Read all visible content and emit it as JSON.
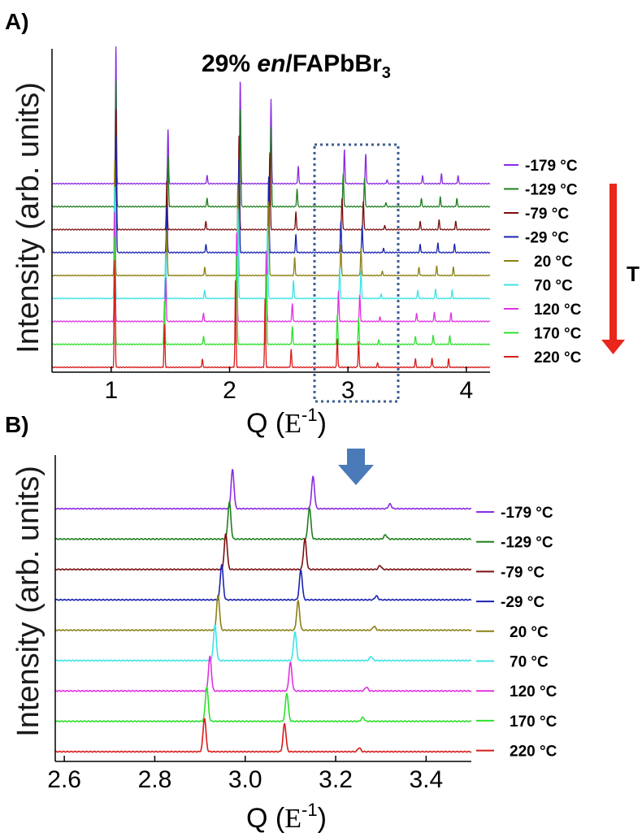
{
  "panels": {
    "a": {
      "letter": "A)"
    },
    "b": {
      "letter": "B)"
    }
  },
  "title": {
    "prefix": "29% ",
    "italic": "en",
    "middle": "/FAPbBr",
    "subscript": "3"
  },
  "temperature_arrow_label": "T",
  "colors": {
    "-179": "#8b2be2",
    "-129": "#1f7f1f",
    "-79": "#7a0f0f",
    "-29": "#1a23b0",
    "20": "#8c8014",
    "70": "#3fe3e6",
    "120": "#e032e0",
    "170": "#2ee02e",
    "220": "#d81b1b",
    "arrow_red": "#e8261c",
    "arrow_blue": "#4a7ab8",
    "dotted_box": "#3f5f8f"
  },
  "chart_data": [
    {
      "type": "line",
      "panel": "A)",
      "title": "29% en/FAPbBr3",
      "xlabel": "Q (E-1)",
      "ylabel": "Intensity (arb. units)",
      "xlim": [
        0.5,
        4.2
      ],
      "xticks": [
        1,
        2,
        3,
        4
      ],
      "legend_position": "right",
      "zoom_region_x": [
        2.72,
        3.42
      ],
      "series_temperatures": [
        -179,
        -129,
        -79,
        -29,
        20,
        70,
        120,
        170,
        220
      ],
      "series": [
        {
          "name": "-179 °C",
          "peaks": [
            [
              1.04,
              1.0
            ],
            [
              1.48,
              0.4
            ],
            [
              1.81,
              0.06
            ],
            [
              2.09,
              0.75
            ],
            [
              2.35,
              0.62
            ],
            [
              2.58,
              0.13
            ],
            [
              2.97,
              0.25
            ],
            [
              3.15,
              0.22
            ],
            [
              3.33,
              0.03
            ],
            [
              3.63,
              0.06
            ],
            [
              3.79,
              0.07
            ],
            [
              3.93,
              0.06
            ]
          ]
        },
        {
          "name": "-129 °C",
          "peaks": [
            [
              1.04,
              0.93
            ],
            [
              1.48,
              0.37
            ],
            [
              1.81,
              0.06
            ],
            [
              2.09,
              0.72
            ],
            [
              2.35,
              0.58
            ],
            [
              2.57,
              0.13
            ],
            [
              2.96,
              0.24
            ],
            [
              3.14,
              0.21
            ],
            [
              3.32,
              0.03
            ],
            [
              3.62,
              0.06
            ],
            [
              3.78,
              0.07
            ],
            [
              3.92,
              0.06
            ]
          ]
        },
        {
          "name": "-79 °C",
          "peaks": [
            [
              1.04,
              0.88
            ],
            [
              1.47,
              0.35
            ],
            [
              1.8,
              0.06
            ],
            [
              2.08,
              0.7
            ],
            [
              2.34,
              0.56
            ],
            [
              2.56,
              0.13
            ],
            [
              2.95,
              0.23
            ],
            [
              3.13,
              0.21
            ],
            [
              3.31,
              0.03
            ],
            [
              3.61,
              0.06
            ],
            [
              3.77,
              0.07
            ],
            [
              3.91,
              0.06
            ]
          ]
        },
        {
          "name": "-29 °C",
          "peaks": [
            [
              1.04,
              0.86
            ],
            [
              1.47,
              0.34
            ],
            [
              1.8,
              0.06
            ],
            [
              2.08,
              0.69
            ],
            [
              2.33,
              0.55
            ],
            [
              2.56,
              0.13
            ],
            [
              2.94,
              0.23
            ],
            [
              3.12,
              0.2
            ],
            [
              3.3,
              0.03
            ],
            [
              3.61,
              0.06
            ],
            [
              3.76,
              0.07
            ],
            [
              3.9,
              0.06
            ]
          ]
        },
        {
          "name": "20 °C",
          "peaks": [
            [
              1.03,
              0.84
            ],
            [
              1.47,
              0.33
            ],
            [
              1.79,
              0.06
            ],
            [
              2.07,
              0.68
            ],
            [
              2.33,
              0.54
            ],
            [
              2.55,
              0.13
            ],
            [
              2.94,
              0.22
            ],
            [
              3.11,
              0.2
            ],
            [
              3.29,
              0.03
            ],
            [
              3.6,
              0.06
            ],
            [
              3.75,
              0.07
            ],
            [
              3.89,
              0.06
            ]
          ]
        },
        {
          "name": "70 °C",
          "peaks": [
            [
              1.03,
              0.82
            ],
            [
              1.46,
              0.33
            ],
            [
              1.79,
              0.06
            ],
            [
              2.07,
              0.67
            ],
            [
              2.32,
              0.53
            ],
            [
              2.54,
              0.13
            ],
            [
              2.93,
              0.22
            ],
            [
              3.11,
              0.2
            ],
            [
              3.28,
              0.03
            ],
            [
              3.59,
              0.06
            ],
            [
              3.74,
              0.07
            ],
            [
              3.88,
              0.06
            ]
          ]
        },
        {
          "name": "120 °C",
          "peaks": [
            [
              1.03,
              0.8
            ],
            [
              1.46,
              0.32
            ],
            [
              1.78,
              0.06
            ],
            [
              2.06,
              0.66
            ],
            [
              2.31,
              0.52
            ],
            [
              2.53,
              0.13
            ],
            [
              2.92,
              0.22
            ],
            [
              3.1,
              0.19
            ],
            [
              3.27,
              0.03
            ],
            [
              3.58,
              0.06
            ],
            [
              3.73,
              0.07
            ],
            [
              3.87,
              0.06
            ]
          ]
        },
        {
          "name": "170 °C",
          "peaks": [
            [
              1.03,
              0.79
            ],
            [
              1.45,
              0.32
            ],
            [
              1.78,
              0.06
            ],
            [
              2.06,
              0.65
            ],
            [
              2.31,
              0.51
            ],
            [
              2.53,
              0.13
            ],
            [
              2.91,
              0.21
            ],
            [
              3.09,
              0.19
            ],
            [
              3.26,
              0.03
            ],
            [
              3.57,
              0.06
            ],
            [
              3.72,
              0.07
            ],
            [
              3.86,
              0.06
            ]
          ]
        },
        {
          "name": "220 °C",
          "peaks": [
            [
              1.03,
              0.78
            ],
            [
              1.45,
              0.31
            ],
            [
              1.77,
              0.06
            ],
            [
              2.05,
              0.64
            ],
            [
              2.3,
              0.5
            ],
            [
              2.52,
              0.13
            ],
            [
              2.91,
              0.21
            ],
            [
              3.09,
              0.19
            ],
            [
              3.25,
              0.03
            ],
            [
              3.57,
              0.06
            ],
            [
              3.71,
              0.07
            ],
            [
              3.85,
              0.06
            ]
          ]
        }
      ]
    },
    {
      "type": "line",
      "panel": "B)",
      "xlabel": "Q (E-1)",
      "ylabel": "Intensity (arb. units)",
      "xlim": [
        2.58,
        3.5
      ],
      "xticks": [
        2.6,
        2.8,
        3.0,
        3.2,
        3.4
      ],
      "xtick_labels": [
        "2.6",
        "2.8",
        "3.0",
        "3.2",
        "3.4"
      ],
      "legend_position": "right",
      "series": [
        {
          "name": "-179 °C",
          "peaks": [
            [
              2.972,
              1.0
            ],
            [
              3.15,
              0.82
            ],
            [
              3.32,
              0.12
            ]
          ]
        },
        {
          "name": "-129 °C",
          "peaks": [
            [
              2.965,
              0.95
            ],
            [
              3.142,
              0.8
            ],
            [
              3.31,
              0.11
            ]
          ]
        },
        {
          "name": "-79 °C",
          "peaks": [
            [
              2.957,
              0.92
            ],
            [
              3.132,
              0.78
            ],
            [
              3.298,
              0.1
            ]
          ]
        },
        {
          "name": "-29 °C",
          "peaks": [
            [
              2.948,
              0.9
            ],
            [
              3.123,
              0.76
            ],
            [
              3.29,
              0.1
            ]
          ]
        },
        {
          "name": "20 °C",
          "peaks": [
            [
              2.94,
              0.9
            ],
            [
              3.117,
              0.75
            ],
            [
              3.285,
              0.1
            ]
          ]
        },
        {
          "name": "70 °C",
          "peaks": [
            [
              2.933,
              0.9
            ],
            [
              3.11,
              0.74
            ],
            [
              3.278,
              0.1
            ]
          ]
        },
        {
          "name": "120 °C",
          "peaks": [
            [
              2.922,
              0.88
            ],
            [
              3.1,
              0.73
            ],
            [
              3.268,
              0.1
            ]
          ]
        },
        {
          "name": "170 °C",
          "peaks": [
            [
              2.915,
              0.88
            ],
            [
              3.092,
              0.72
            ],
            [
              3.26,
              0.1
            ]
          ]
        },
        {
          "name": "220 °C",
          "peaks": [
            [
              2.91,
              0.86
            ],
            [
              3.087,
              0.72
            ],
            [
              3.252,
              0.1
            ]
          ]
        }
      ]
    }
  ]
}
